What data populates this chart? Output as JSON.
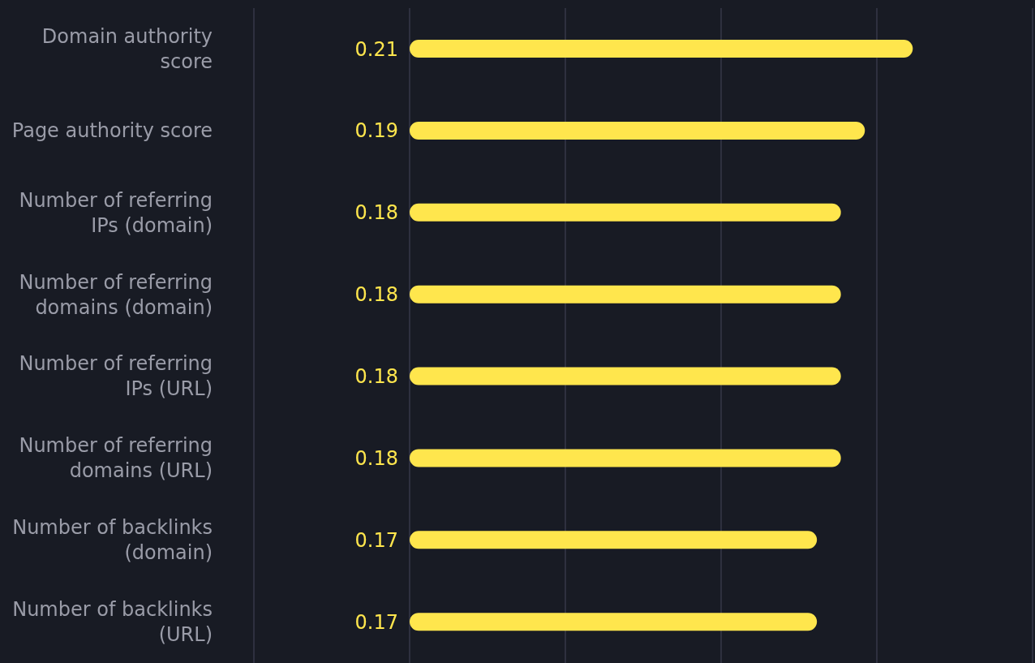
{
  "chart_data": {
    "type": "bar",
    "orientation": "horizontal",
    "categories": [
      "Domain authority score",
      "Page authority score",
      "Number of referring IPs (domain)",
      "Number of referring domains (domain)",
      "Number of referring IPs (URL)",
      "Number of referring domains (URL)",
      "Number of backlinks (domain)",
      "Number of backlinks (URL)"
    ],
    "values": [
      0.21,
      0.19,
      0.18,
      0.18,
      0.18,
      0.18,
      0.17,
      0.17
    ],
    "color": "#ffe64d",
    "xlim": [
      -0.065,
      0.26
    ],
    "xticks": [
      {
        "value": -0.065,
        "label": null
      },
      {
        "value": 0,
        "label": null
      },
      {
        "value": 0.065,
        "label": null
      },
      {
        "value": 0.13,
        "label": null
      },
      {
        "value": 0.195,
        "label": null
      },
      {
        "value": 0.26,
        "label": null
      }
    ],
    "grid": "x",
    "tick_labels": "y",
    "data_labels": true
  }
}
